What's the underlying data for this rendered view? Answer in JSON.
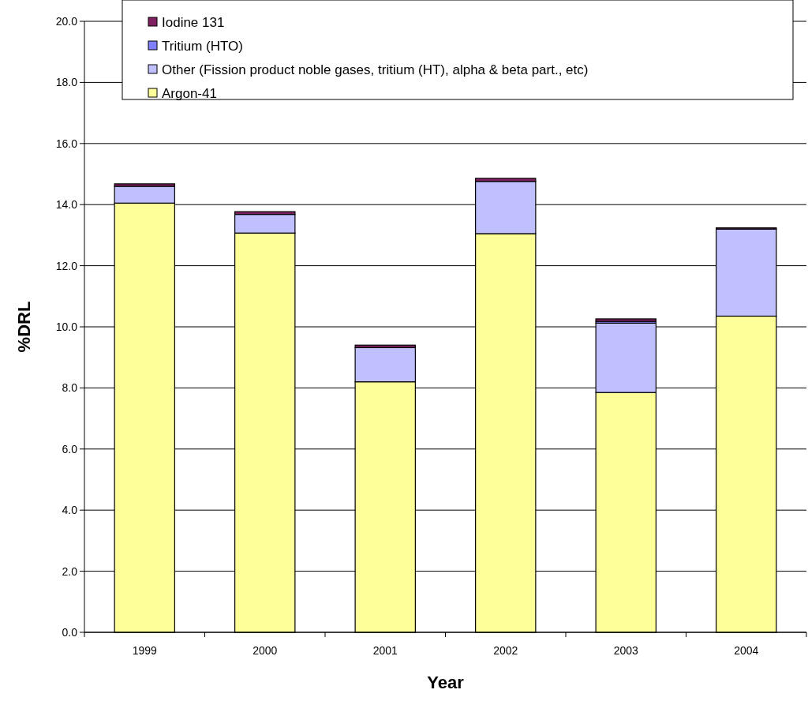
{
  "chart_data": {
    "type": "bar",
    "stacked": true,
    "xlabel": "Year",
    "ylabel": "%DRL",
    "categories": [
      "1999",
      "2000",
      "2001",
      "2002",
      "2003",
      "2004"
    ],
    "series": [
      {
        "name": "Argon-41",
        "color": "#ffff99",
        "values": [
          14.05,
          13.07,
          8.2,
          13.05,
          7.85,
          10.35
        ]
      },
      {
        "name": "Other (Fission product noble gases, tritium (HT), alpha & beta part., etc)",
        "color": "#c0c0ff",
        "values": [
          0.55,
          0.61,
          1.12,
          1.71,
          2.27,
          2.85
        ]
      },
      {
        "name": "Tritium (HTO)",
        "color": "#8080ff",
        "values": [
          null,
          null,
          null,
          null,
          0.06,
          null
        ]
      },
      {
        "name": "Iodine 131",
        "color": "#802060",
        "values": [
          0.08,
          0.09,
          0.08,
          0.1,
          0.08,
          0.04
        ]
      }
    ],
    "ylim": [
      0,
      20
    ],
    "yticks": [
      {
        "value": 0,
        "label": "0.0"
      },
      {
        "value": 2,
        "label": "2.0"
      },
      {
        "value": 4,
        "label": "4.0"
      },
      {
        "value": 6,
        "label": "6.0"
      },
      {
        "value": 8,
        "label": "8.0"
      },
      {
        "value": 10,
        "label": "10.0"
      },
      {
        "value": 12,
        "label": "12.0"
      },
      {
        "value": 14,
        "label": "14.0"
      },
      {
        "value": 16,
        "label": "16.0"
      },
      {
        "value": 18,
        "label": "18.0"
      },
      {
        "value": 20,
        "label": "20.0"
      }
    ],
    "grid": "y",
    "legend": "top"
  }
}
